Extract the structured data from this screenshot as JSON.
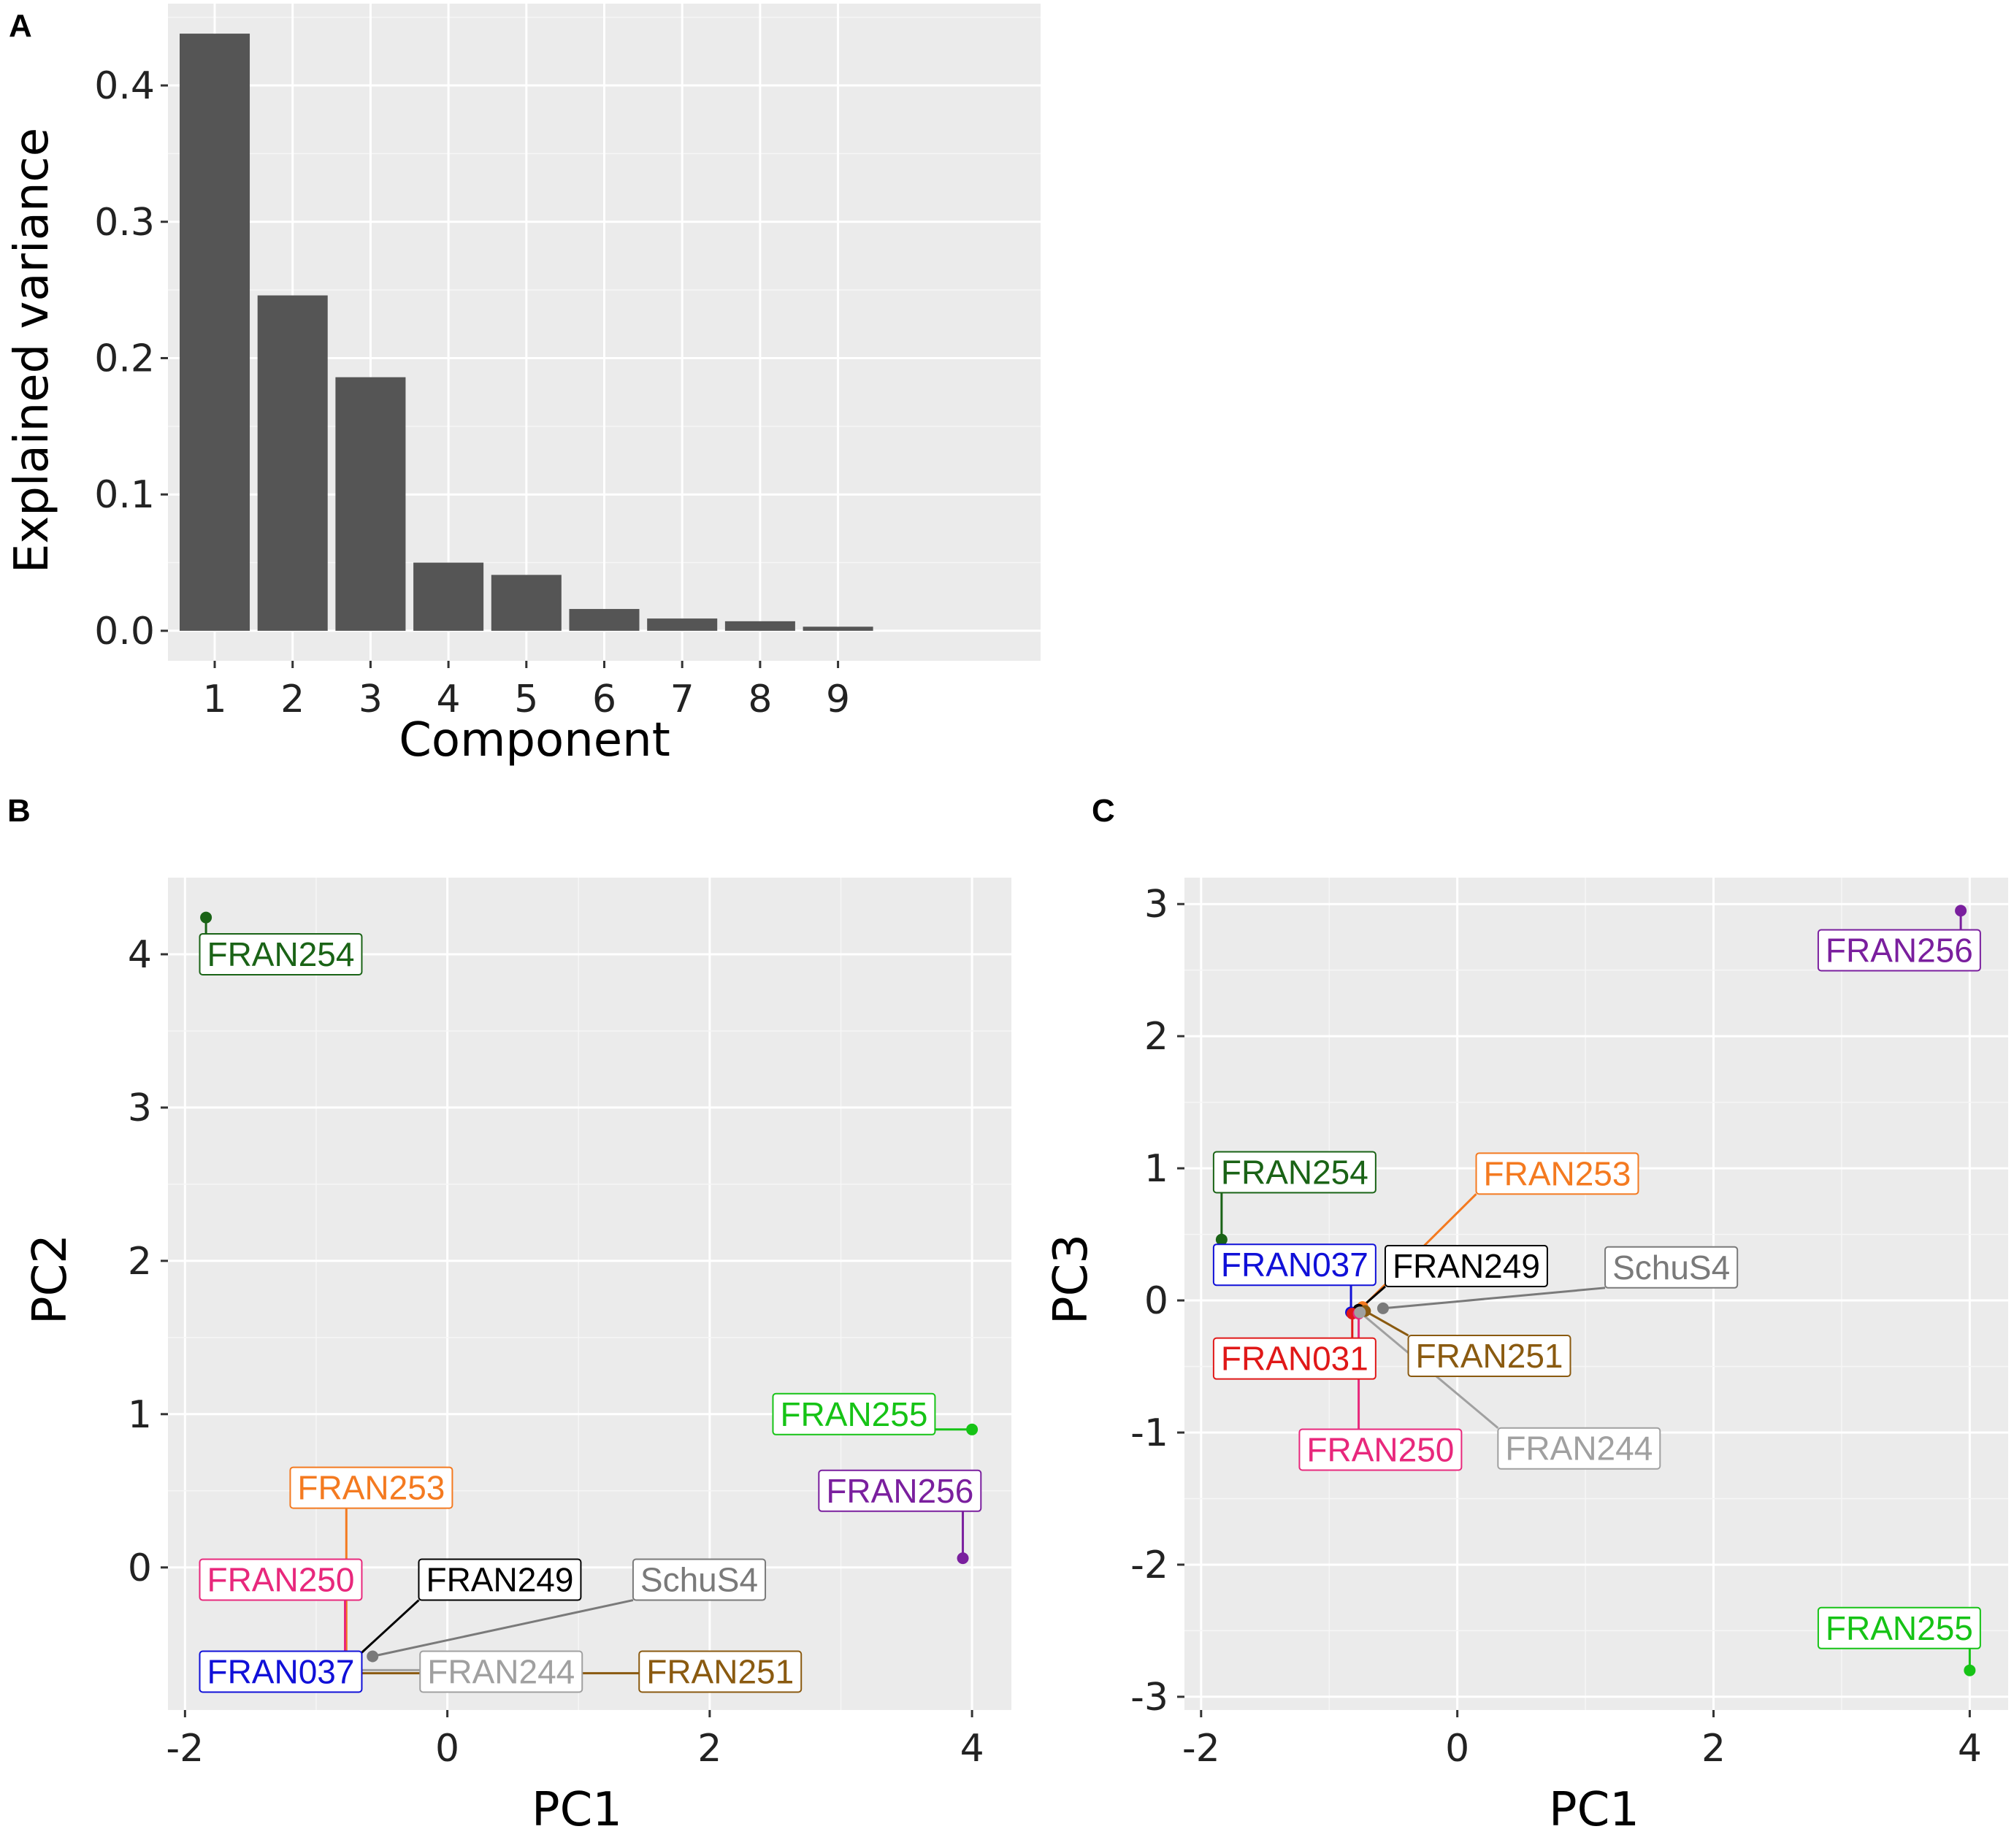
{
  "chart_data": [
    {
      "panel": "A",
      "type": "bar",
      "xlabel": "Component",
      "ylabel": "Explained variance",
      "categories": [
        "1",
        "2",
        "3",
        "4",
        "5",
        "6",
        "7",
        "8",
        "9"
      ],
      "values": [
        0.438,
        0.246,
        0.186,
        0.05,
        0.041,
        0.016,
        0.009,
        0.007,
        0.003
      ],
      "xlim": [
        0.4,
        11.6
      ],
      "ylim": [
        -0.022,
        0.46
      ],
      "yticks": [
        0.0,
        0.1,
        0.2,
        0.3,
        0.4
      ],
      "ytick_labels": [
        "0.0",
        "0.1",
        "0.2",
        "0.3",
        "0.4"
      ],
      "bar_color": "#555555",
      "panel_bg": "#ebebeb",
      "grid": true
    },
    {
      "panel": "B",
      "type": "scatter",
      "xlabel": "PC1",
      "ylabel": "PC2",
      "xlim": [
        -2.13,
        4.3
      ],
      "ylim": [
        -0.93,
        4.5
      ],
      "xticks": [
        -2,
        0,
        2,
        4
      ],
      "xtick_labels": [
        "-2",
        "0",
        "2",
        "4"
      ],
      "yticks": [
        0,
        1,
        2,
        3,
        4
      ],
      "ytick_labels": [
        "0",
        "1",
        "2",
        "3",
        "4"
      ],
      "panel_bg": "#ebebeb",
      "grid": true,
      "points": [
        {
          "label": "FRAN254",
          "x": -1.84,
          "y": 4.24,
          "color": "#1a6316",
          "lx": -1.27,
          "ly": 4.0
        },
        {
          "label": "FRAN255",
          "x": 4.0,
          "y": 0.9,
          "color": "#16c316",
          "lx": 3.1,
          "ly": 1.0
        },
        {
          "label": "FRAN256",
          "x": 3.93,
          "y": 0.06,
          "color": "#7a1f9e",
          "lx": 3.45,
          "ly": 0.5
        },
        {
          "label": "FRAN253",
          "x": -0.77,
          "y": -0.6,
          "color": "#f47a20",
          "lx": -0.58,
          "ly": 0.52
        },
        {
          "label": "FRAN250",
          "x": -0.78,
          "y": -0.63,
          "color": "#e8287c",
          "lx": -1.27,
          "ly": -0.08
        },
        {
          "label": "FRAN249",
          "x": -0.76,
          "y": -0.64,
          "color": "#000000",
          "lx": 0.4,
          "ly": -0.08
        },
        {
          "label": "SchuS4",
          "x": -0.57,
          "y": -0.58,
          "color": "#7a7a7a",
          "lx": 1.92,
          "ly": -0.08
        },
        {
          "label": "FRAN037",
          "x": -0.79,
          "y": -0.68,
          "color": "#1010d8",
          "lx": -1.27,
          "ly": -0.68
        },
        {
          "label": "FRAN244",
          "x": -0.76,
          "y": -0.67,
          "color": "#a0a0a0",
          "lx": 0.41,
          "ly": -0.68
        },
        {
          "label": "FRAN251",
          "x": -0.77,
          "y": -0.69,
          "color": "#8a5a10",
          "lx": 2.08,
          "ly": -0.68
        }
      ]
    },
    {
      "panel": "C",
      "type": "scatter",
      "xlabel": "PC1",
      "ylabel": "PC3",
      "xlim": [
        -2.13,
        4.3
      ],
      "ylim": [
        -3.1,
        3.2
      ],
      "xticks": [
        -2,
        0,
        2,
        4
      ],
      "xtick_labels": [
        "-2",
        "0",
        "2",
        "4"
      ],
      "yticks": [
        -3,
        -2,
        -1,
        0,
        1,
        2,
        3
      ],
      "ytick_labels": [
        "-3",
        "-2",
        "-1",
        "0",
        "1",
        "2",
        "3"
      ],
      "panel_bg": "#ebebeb",
      "grid": true,
      "points": [
        {
          "label": "FRAN256",
          "x": 3.93,
          "y": 2.95,
          "color": "#7a1f9e",
          "lx": 3.45,
          "ly": 2.65
        },
        {
          "label": "FRAN255",
          "x": 4.0,
          "y": -2.8,
          "color": "#16c316",
          "lx": 3.45,
          "ly": -2.48
        },
        {
          "label": "FRAN254",
          "x": -1.84,
          "y": 0.46,
          "color": "#1a6316",
          "lx": -1.27,
          "ly": 0.97
        },
        {
          "label": "FRAN253",
          "x": -0.74,
          "y": -0.05,
          "color": "#f47a20",
          "lx": 0.78,
          "ly": 0.96
        },
        {
          "label": "FRAN037",
          "x": -0.83,
          "y": -0.09,
          "color": "#1010d8",
          "lx": -1.27,
          "ly": 0.27
        },
        {
          "label": "FRAN249",
          "x": -0.77,
          "y": -0.07,
          "color": "#000000",
          "lx": 0.07,
          "ly": 0.26
        },
        {
          "label": "SchuS4",
          "x": -0.58,
          "y": -0.06,
          "color": "#7a7a7a",
          "lx": 1.67,
          "ly": 0.25
        },
        {
          "label": "FRAN031",
          "x": -0.82,
          "y": -0.1,
          "color": "#e01818",
          "lx": -1.27,
          "ly": -0.44
        },
        {
          "label": "FRAN251",
          "x": -0.72,
          "y": -0.08,
          "color": "#8a5a10",
          "lx": 0.25,
          "ly": -0.42
        },
        {
          "label": "FRAN250",
          "x": -0.77,
          "y": -0.1,
          "color": "#e8287c",
          "lx": -0.6,
          "ly": -1.13
        },
        {
          "label": "FRAN244",
          "x": -0.76,
          "y": -0.09,
          "color": "#a0a0a0",
          "lx": 0.95,
          "ly": -1.12
        }
      ]
    }
  ]
}
